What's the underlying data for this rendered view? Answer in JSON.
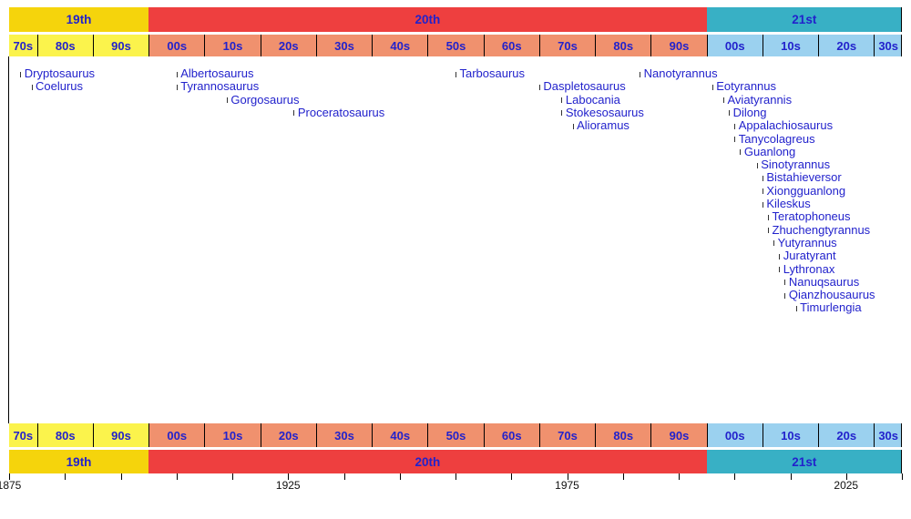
{
  "palette": {
    "century_yellow": "#F5D40C",
    "century_red": "#EE3F3F",
    "century_teal": "#38B0C5",
    "decade_yellow": "#FBF34C",
    "decade_coral": "#F0916E",
    "decade_blue": "#9BD1EF",
    "label_blue": "#2222CC",
    "axis_black": "#111111"
  },
  "chart_data": {
    "type": "scatter",
    "subtype": "timeline-of-taxon-naming",
    "x_range": [
      1875,
      2035
    ],
    "x_tick_step": 10,
    "axis_year_labels": [
      "1875",
      "1925",
      "1975",
      "2025"
    ],
    "legend": "none",
    "points": [
      {
        "label": "Dryptosaurus",
        "year": 1877,
        "row": 1
      },
      {
        "label": "Coelurus",
        "year": 1879,
        "row": 2
      },
      {
        "label": "Albertosaurus",
        "year": 1905,
        "row": 1
      },
      {
        "label": "Tyrannosaurus",
        "year": 1905,
        "row": 2
      },
      {
        "label": "Gorgosaurus",
        "year": 1914,
        "row": 3
      },
      {
        "label": "Proceratosaurus",
        "year": 1926,
        "row": 4
      },
      {
        "label": "Tarbosaurus",
        "year": 1955,
        "row": 1
      },
      {
        "label": "Daspletosaurus",
        "year": 1970,
        "row": 2
      },
      {
        "label": "Labocania",
        "year": 1974,
        "row": 3
      },
      {
        "label": "Stokesosaurus",
        "year": 1974,
        "row": 4
      },
      {
        "label": "Alioramus",
        "year": 1976,
        "row": 5
      },
      {
        "label": "Nanotyrannus",
        "year": 1988,
        "row": 1
      },
      {
        "label": "Eotyrannus",
        "year": 2001,
        "row": 2
      },
      {
        "label": "Aviatyrannis",
        "year": 2003,
        "row": 3
      },
      {
        "label": "Dilong",
        "year": 2004,
        "row": 4
      },
      {
        "label": "Appalachiosaurus",
        "year": 2005,
        "row": 5
      },
      {
        "label": "Tanycolagreus",
        "year": 2005,
        "row": 6
      },
      {
        "label": "Guanlong",
        "year": 2006,
        "row": 7
      },
      {
        "label": "Sinotyrannus",
        "year": 2009,
        "row": 8
      },
      {
        "label": "Bistahieversor",
        "year": 2010,
        "row": 9
      },
      {
        "label": "Xiongguanlong",
        "year": 2010,
        "row": 10
      },
      {
        "label": "Kileskus",
        "year": 2010,
        "row": 11
      },
      {
        "label": "Teratophoneus",
        "year": 2011,
        "row": 12
      },
      {
        "label": "Zhuchengtyrannus",
        "year": 2011,
        "row": 13
      },
      {
        "label": "Yutyrannus",
        "year": 2012,
        "row": 14
      },
      {
        "label": "Juratyrant",
        "year": 2013,
        "row": 15
      },
      {
        "label": "Lythronax",
        "year": 2013,
        "row": 16
      },
      {
        "label": "Nanuqsaurus",
        "year": 2014,
        "row": 17
      },
      {
        "label": "Qianzhousaurus",
        "year": 2014,
        "row": 18
      },
      {
        "label": "Timurlengia",
        "year": 2016,
        "row": 19
      }
    ]
  },
  "timeline": {
    "start_year": 1875,
    "end_year": 2035,
    "centuries": [
      {
        "label": "19th",
        "start": 1875,
        "end": 1900,
        "color_key": "century_yellow"
      },
      {
        "label": "20th",
        "start": 1900,
        "end": 2000,
        "color_key": "century_red"
      },
      {
        "label": "21st",
        "start": 2000,
        "end": 2035,
        "color_key": "century_teal"
      }
    ],
    "decades": [
      {
        "label": "70s",
        "start": 1875,
        "end": 1880,
        "color_key": "decade_yellow"
      },
      {
        "label": "80s",
        "start": 1880,
        "end": 1890,
        "color_key": "decade_yellow"
      },
      {
        "label": "90s",
        "start": 1890,
        "end": 1900,
        "color_key": "decade_yellow"
      },
      {
        "label": "00s",
        "start": 1900,
        "end": 1910,
        "color_key": "decade_coral"
      },
      {
        "label": "10s",
        "start": 1910,
        "end": 1920,
        "color_key": "decade_coral"
      },
      {
        "label": "20s",
        "start": 1920,
        "end": 1930,
        "color_key": "decade_coral"
      },
      {
        "label": "30s",
        "start": 1930,
        "end": 1940,
        "color_key": "decade_coral"
      },
      {
        "label": "40s",
        "start": 1940,
        "end": 1950,
        "color_key": "decade_coral"
      },
      {
        "label": "50s",
        "start": 1950,
        "end": 1960,
        "color_key": "decade_coral"
      },
      {
        "label": "60s",
        "start": 1960,
        "end": 1970,
        "color_key": "decade_coral"
      },
      {
        "label": "70s",
        "start": 1970,
        "end": 1980,
        "color_key": "decade_coral"
      },
      {
        "label": "80s",
        "start": 1980,
        "end": 1990,
        "color_key": "decade_coral"
      },
      {
        "label": "90s",
        "start": 1990,
        "end": 2000,
        "color_key": "decade_coral"
      },
      {
        "label": "00s",
        "start": 2000,
        "end": 2010,
        "color_key": "decade_blue"
      },
      {
        "label": "10s",
        "start": 2010,
        "end": 2020,
        "color_key": "decade_blue"
      },
      {
        "label": "20s",
        "start": 2020,
        "end": 2030,
        "color_key": "decade_blue"
      },
      {
        "label": "30s",
        "start": 2030,
        "end": 2035,
        "color_key": "decade_blue"
      }
    ],
    "axis_year_positions": [
      1875,
      1925,
      1975,
      2025
    ]
  }
}
